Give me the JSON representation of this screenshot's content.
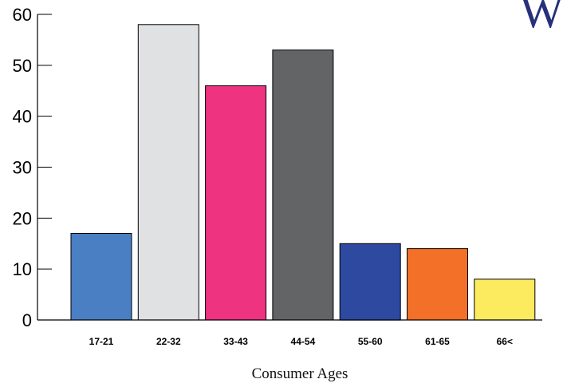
{
  "chart_data": {
    "type": "bar",
    "title": "",
    "xlabel": "Consumer Ages",
    "ylabel": "",
    "categories": [
      "17-21",
      "22-32",
      "33-43",
      "44-54",
      "55-60",
      "61-65",
      "66<"
    ],
    "values": [
      17,
      58,
      46,
      53,
      15,
      14,
      8
    ],
    "colors": [
      "#4a7fc4",
      "#e0e1e3",
      "#ee3480",
      "#636466",
      "#2e49a0",
      "#f37029",
      "#fdeb5f"
    ],
    "ylim": [
      0,
      60
    ],
    "yticks": [
      0,
      10,
      20,
      30,
      40,
      50,
      60
    ],
    "grid": false,
    "legend": "none"
  },
  "logo": {
    "letter": "W",
    "color": "#27317a"
  }
}
